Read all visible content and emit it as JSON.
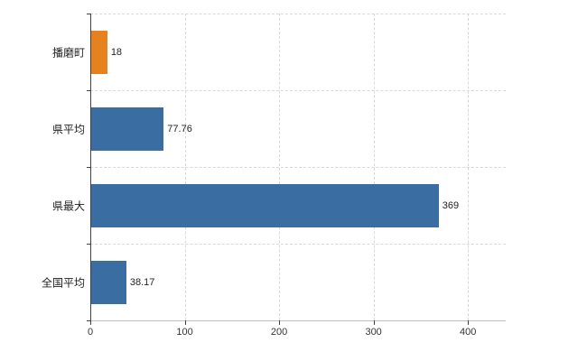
{
  "chart_data": {
    "type": "bar",
    "orientation": "horizontal",
    "title": "",
    "xlabel": "",
    "ylabel": "",
    "categories": [
      "播磨町",
      "県平均",
      "県最大",
      "全国平均"
    ],
    "values": [
      18,
      77.76,
      369,
      38.17
    ],
    "value_labels": [
      "18",
      "77.76",
      "369",
      "38.17"
    ],
    "series": [
      {
        "name": "value",
        "values": [
          18,
          77.76,
          369,
          38.17
        ]
      }
    ],
    "bar_colors": [
      "#e5821f",
      "#3a6da2",
      "#3a6da2",
      "#3a6da2"
    ],
    "xlim": [
      0,
      440
    ],
    "xticks": [
      0,
      100,
      200,
      300,
      400
    ],
    "xtick_labels": [
      "0",
      "100",
      "200",
      "300",
      "400"
    ],
    "grid": true,
    "legend_position": "none"
  },
  "colors": {
    "highlight_bar": "#e5821f",
    "default_bar": "#3a6da2",
    "gridline": "#d9d9d9",
    "axis": "#404040",
    "text": "#222222"
  }
}
